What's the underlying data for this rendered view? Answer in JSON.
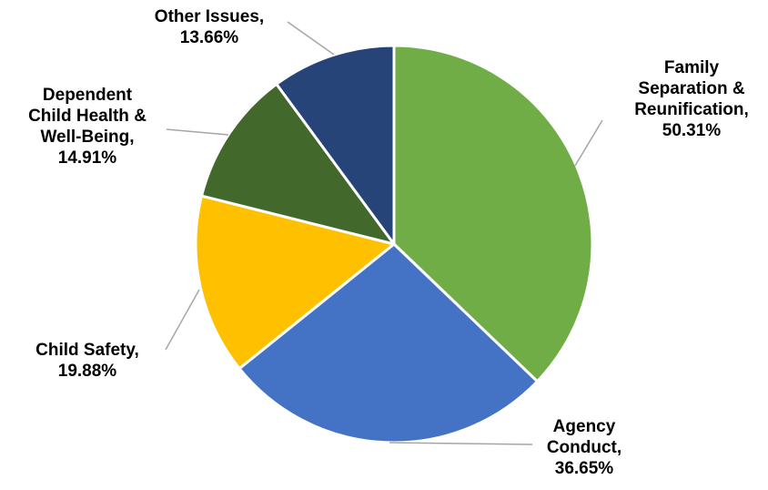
{
  "chart_data": {
    "type": "pie",
    "title": "",
    "slices": [
      {
        "label": "Family Separation & Reunification",
        "label_lines": [
          "Family",
          "Separation &",
          "Reunification,"
        ],
        "value": 50.31,
        "value_text": "50.31%",
        "color": "#70AD47"
      },
      {
        "label": "Agency Conduct",
        "label_lines": [
          "Agency",
          "Conduct,"
        ],
        "value": 36.65,
        "value_text": "36.65%",
        "color": "#4472C4"
      },
      {
        "label": "Child Safety",
        "label_lines": [
          "Child Safety,"
        ],
        "value": 19.88,
        "value_text": "19.88%",
        "color": "#FFC000"
      },
      {
        "label": "Dependent Child Health & Well-Being",
        "label_lines": [
          "Dependent",
          "Child Health &",
          "Well-Being,"
        ],
        "value": 14.91,
        "value_text": "14.91%",
        "color": "#43682B"
      },
      {
        "label": "Other Issues",
        "label_lines": [
          "Other Issues,"
        ],
        "value": 13.66,
        "value_text": "13.66%",
        "color": "#264478"
      }
    ],
    "start_angle": "12 o'clock",
    "direction": "clockwise",
    "legend": "none",
    "label_placement": "outside with leader lines"
  }
}
